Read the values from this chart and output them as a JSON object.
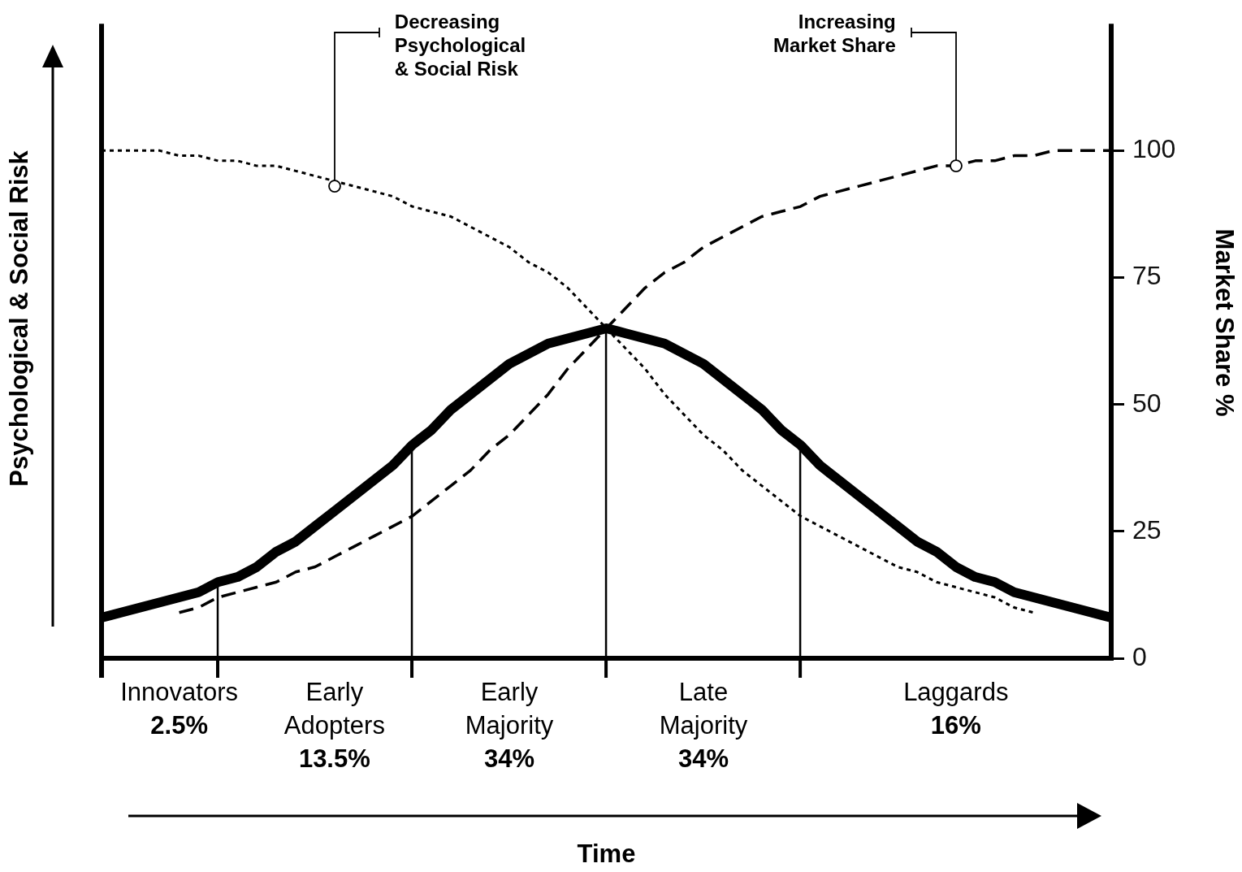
{
  "chart_data": {
    "type": "line",
    "xlabel": "Time",
    "ylabel": "Market Share %",
    "categories": [
      null,
      null,
      null,
      null,
      "Innovators\n2.5%",
      null,
      null,
      null,
      null,
      null,
      null,
      null,
      "Early\nAdopters\n13.5%",
      null,
      null,
      null,
      null,
      null,
      null,
      null,
      null,
      "Early\nMajority\n34%",
      null,
      null,
      null,
      null,
      null,
      null,
      null,
      null,
      null,
      "Late\nMajority\n34%",
      null,
      null,
      null,
      null,
      null,
      null,
      null,
      null,
      null,
      null,
      null,
      null,
      "Laggards\n16%",
      null,
      null,
      null,
      null,
      null,
      null,
      null,
      null
    ],
    "series": [
      {
        "color": "#000000",
        "line_style": "solid",
        "values": [
          8,
          9,
          10,
          11,
          12,
          13,
          15,
          16,
          18,
          21,
          23,
          26,
          29,
          32,
          35,
          38,
          42,
          45,
          49,
          52,
          55,
          58,
          60,
          62,
          63,
          64,
          65,
          64,
          63,
          62,
          60,
          58,
          55,
          52,
          49,
          45,
          42,
          38,
          35,
          32,
          29,
          26,
          23,
          21,
          18,
          16,
          15,
          13,
          12,
          11,
          10,
          9,
          8
        ]
      },
      {
        "color": "#000000",
        "line_style": "dashed",
        "values": [
          null,
          null,
          null,
          null,
          9,
          10,
          12,
          13,
          14,
          15,
          17,
          18,
          20,
          22,
          24,
          26,
          28,
          31,
          34,
          37,
          41,
          44,
          48,
          52,
          57,
          61,
          65,
          69,
          73,
          76,
          78,
          81,
          83,
          85,
          87,
          88,
          89,
          91,
          92,
          93,
          94,
          95,
          96,
          97,
          97,
          98,
          98,
          99,
          99,
          100,
          100,
          100,
          100
        ]
      },
      {
        "color": "#000000",
        "line_style": "dotted",
        "values": [
          100,
          100,
          100,
          100,
          99,
          99,
          98,
          98,
          97,
          97,
          96,
          95,
          94,
          93,
          92,
          91,
          89,
          88,
          87,
          85,
          83,
          81,
          78,
          76,
          73,
          69,
          65,
          61,
          57,
          52,
          48,
          44,
          41,
          37,
          34,
          31,
          28,
          26,
          24,
          22,
          20,
          18,
          17,
          15,
          14,
          13,
          12,
          10,
          9,
          null,
          null,
          null,
          null
        ]
      }
    ],
    "ylim": [
      0,
      125
    ],
    "yticks": [
      0,
      25,
      50,
      75,
      100
    ],
    "annotations": [
      {
        "text": "Decreasing\nPsychological\n& Social Risk",
        "x": "Early\nAdopters\n13.5%",
        "y": 93
      },
      {
        "text": "Increasing\nMarket Share",
        "x": "Laggards\n16%",
        "y": 97
      },
      "Psychological & Social Risk"
    ],
    "grid": false,
    "legend": false,
    "marker": "none"
  }
}
